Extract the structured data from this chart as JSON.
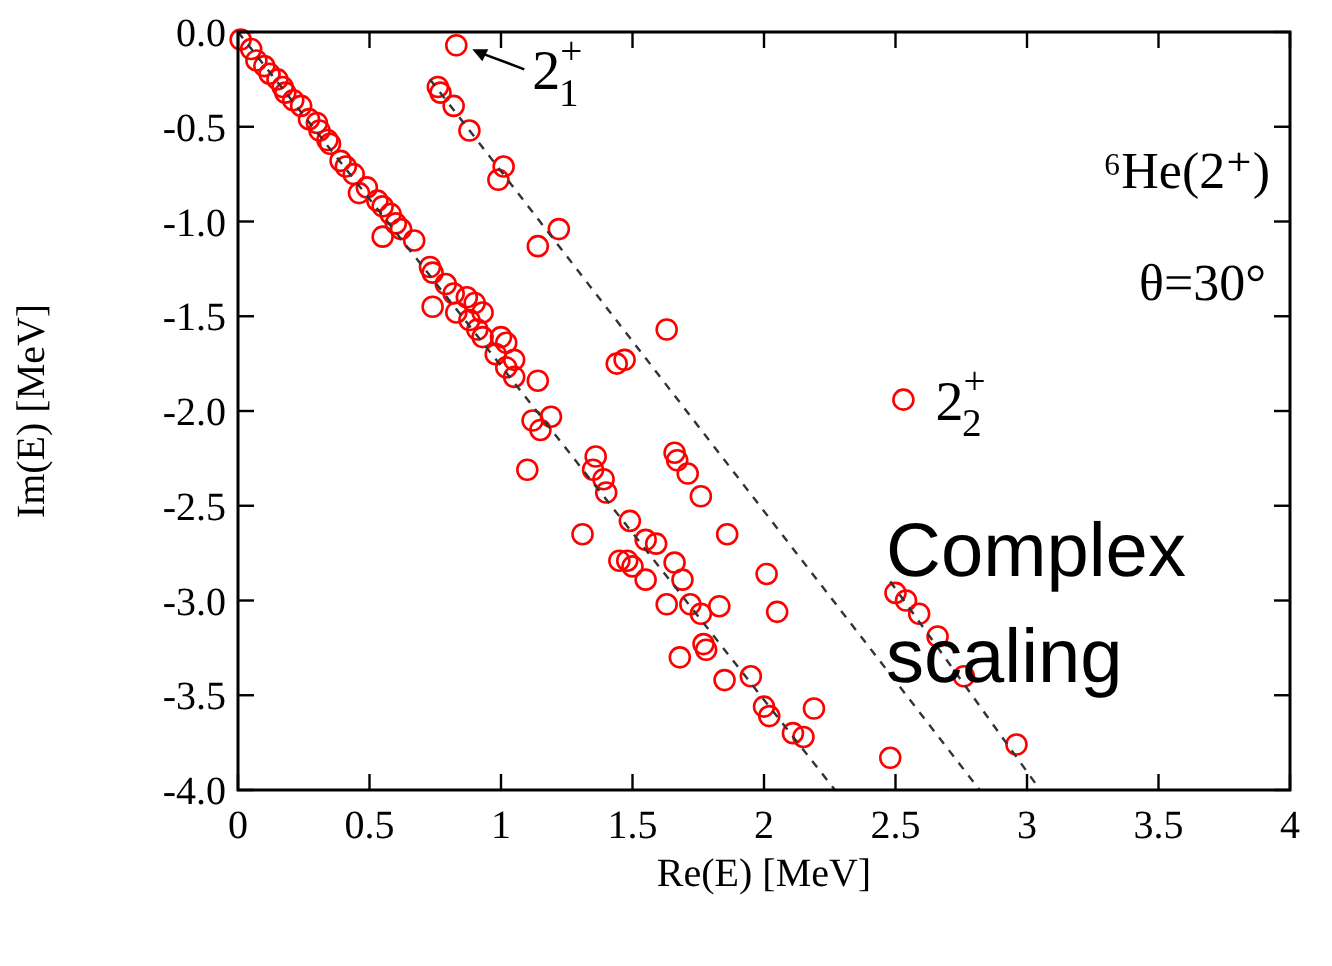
{
  "chart_data": {
    "type": "scatter",
    "xlabel": "Re(E) [MeV]",
    "ylabel": "Im(E) [MeV]",
    "xlim": [
      0,
      4
    ],
    "ylim": [
      -4,
      0
    ],
    "xticks": [
      0,
      0.5,
      1,
      1.5,
      2,
      2.5,
      3,
      3.5,
      4
    ],
    "yticks": [
      {
        "value": 0,
        "label": "0.0"
      },
      {
        "value": -0.5,
        "label": "-0.5"
      },
      {
        "value": -1,
        "label": "-1.0"
      },
      {
        "value": -1.5,
        "label": "-1.5"
      },
      {
        "value": -2,
        "label": "-2.0"
      },
      {
        "value": -2.5,
        "label": "-2.5"
      },
      {
        "value": -3,
        "label": "-3.0"
      },
      {
        "value": -3.5,
        "label": "-3.5"
      },
      {
        "value": -4,
        "label": "-4.0"
      }
    ],
    "grid": false,
    "marker": "circle",
    "series": [
      {
        "color": "#ff0000",
        "x": [
          0.01,
          0.05,
          0.07,
          0.1,
          0.12,
          0.15,
          0.17,
          0.18,
          0.21,
          0.24,
          0.27,
          0.3,
          0.31,
          0.34,
          0.35,
          0.39,
          0.41,
          0.44,
          0.46,
          0.49,
          0.53,
          0.55,
          0.58,
          0.6,
          0.62,
          0.55,
          0.67,
          0.73,
          0.74,
          0.79,
          0.82,
          0.87,
          0.9,
          0.74,
          0.83,
          0.88,
          0.93,
          0.91,
          0.93,
          1.0,
          1.02,
          0.98,
          1.05,
          1.02,
          1.05,
          1.14,
          1.12,
          1.19,
          1.15,
          1.1,
          1.36,
          1.35,
          1.39,
          1.4,
          1.31,
          1.45,
          0.83,
          0.76,
          0.77,
          0.82,
          0.88,
          1.01,
          0.99,
          1.22,
          1.14,
          1.44,
          1.63,
          1.47,
          1.66,
          1.67,
          1.71,
          1.76,
          2.53,
          1.86,
          1.49,
          1.55,
          1.59,
          1.48,
          1.5,
          1.55,
          1.66,
          1.69,
          1.63,
          1.72,
          1.76,
          1.83,
          1.77,
          1.78,
          1.68,
          1.85,
          1.95,
          2.0,
          2.02,
          2.11,
          2.15,
          2.19,
          2.01,
          2.05,
          2.48,
          2.5,
          2.54,
          2.59,
          2.66,
          2.76,
          2.96
        ],
        "values": [
          -0.04,
          -0.09,
          -0.15,
          -0.18,
          -0.22,
          -0.25,
          -0.29,
          -0.32,
          -0.36,
          -0.39,
          -0.46,
          -0.48,
          -0.52,
          -0.57,
          -0.59,
          -0.68,
          -0.71,
          -0.75,
          -0.85,
          -0.82,
          -0.89,
          -0.92,
          -0.96,
          -1.01,
          -1.04,
          -1.08,
          -1.1,
          -1.24,
          -1.27,
          -1.33,
          -1.38,
          -1.4,
          -1.43,
          -1.45,
          -1.48,
          -1.52,
          -1.48,
          -1.57,
          -1.61,
          -1.61,
          -1.64,
          -1.7,
          -1.73,
          -1.77,
          -1.82,
          -1.84,
          -2.05,
          -2.03,
          -2.1,
          -2.31,
          -2.24,
          -2.31,
          -2.36,
          -2.43,
          -2.65,
          -2.79,
          -0.07,
          -0.29,
          -0.32,
          -0.39,
          -0.52,
          -0.71,
          -0.78,
          -1.04,
          -1.13,
          -1.75,
          -1.57,
          -1.73,
          -2.22,
          -2.26,
          -2.33,
          -2.45,
          -1.94,
          -2.65,
          -2.58,
          -2.68,
          -2.7,
          -2.79,
          -2.82,
          -2.89,
          -2.8,
          -2.89,
          -3.02,
          -3.02,
          -3.07,
          -3.03,
          -3.23,
          -3.26,
          -3.3,
          -3.42,
          -3.4,
          -3.56,
          -3.61,
          -3.7,
          -3.72,
          -3.57,
          -2.86,
          -3.06,
          -3.83,
          -2.96,
          -3.0,
          -3.07,
          -3.19,
          -3.4,
          -3.76
        ]
      },
      {
        "type": "line",
        "color": "#333333",
        "line_style": "dashed",
        "marker": "none",
        "x": [
          0,
          2.27
        ],
        "values": [
          0,
          -4
        ]
      },
      {
        "type": "line",
        "color": "#333333",
        "line_style": "dashed",
        "marker": "none",
        "x": [
          0.73,
          2.82
        ],
        "values": [
          -0.25,
          -4
        ]
      },
      {
        "type": "line",
        "color": "#333333",
        "line_style": "dashed",
        "marker": "none",
        "x": [
          2.48,
          3.05
        ],
        "values": [
          -2.9,
          -4
        ]
      }
    ],
    "annotations": [
      {
        "text": "2$^{+}$$_{1}$",
        "x": 0.83,
        "y": -0.07
      },
      {
        "text": "2$^{+}$$_{2}$",
        "x": 2.53,
        "y": -1.94
      },
      "⁶He(2⁺)",
      "θ=30°",
      "Complex scaling"
    ]
  }
}
